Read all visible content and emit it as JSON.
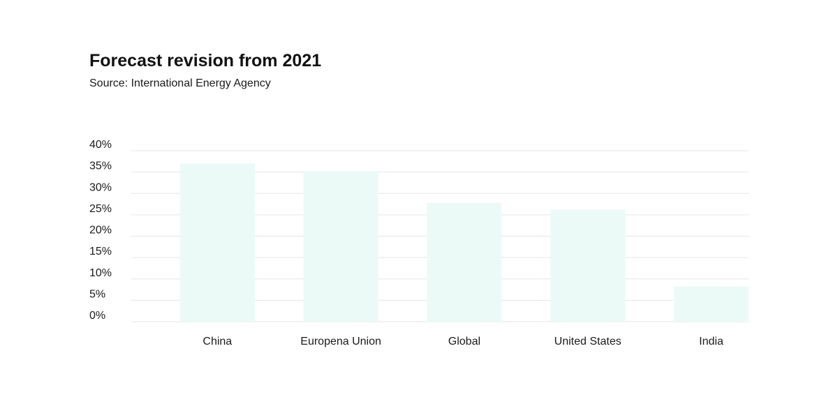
{
  "chart_data": {
    "type": "bar",
    "title": "Forecast revision from 2021",
    "subtitle": "Source: International Energy Agency",
    "categories": [
      "China",
      "Europena Union",
      "Global",
      "United States",
      "India"
    ],
    "values": [
      37,
      35.2,
      27.8,
      26.2,
      8.2
    ],
    "y_ticks": [
      "0%",
      "5%",
      "10%",
      "15%",
      "20%",
      "25%",
      "30%",
      "35%",
      "40%"
    ],
    "ylim": [
      0,
      40
    ],
    "grid": true,
    "legend": "none",
    "colors": {
      "bar": "#ebfaf7",
      "grid": "#e6e6e6",
      "text": "#1a1a1a"
    }
  }
}
